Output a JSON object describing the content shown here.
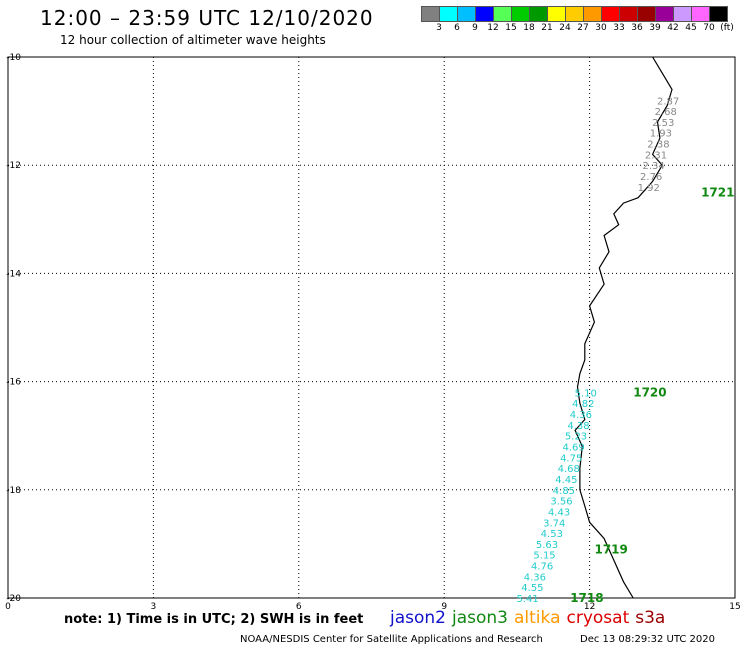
{
  "header": {
    "title": "12:00 – 23:59 UTC 12/10/2020",
    "subtitle": "12 hour collection of altimeter wave heights"
  },
  "colorbar": {
    "colors": [
      "#808080",
      "#00ffff",
      "#00bfff",
      "#0000ff",
      "#55ff55",
      "#00cc00",
      "#009900",
      "#ffff00",
      "#ffcc00",
      "#ff9900",
      "#ff0000",
      "#cc0000",
      "#990000",
      "#990099",
      "#cc99ff",
      "#ff66ff",
      "#000000"
    ],
    "labels": [
      "3",
      "6",
      "9",
      "12",
      "15",
      "18",
      "21",
      "24",
      "27",
      "30",
      "33",
      "36",
      "39",
      "42",
      "45",
      "70",
      "(ft)"
    ]
  },
  "axes": {
    "x_ticks": [
      "0",
      "3",
      "6",
      "9",
      "12",
      "15"
    ],
    "y_ticks": [
      "-10",
      "-12",
      "-14",
      "-16",
      "-18",
      "-20"
    ]
  },
  "map_extent": {
    "lon_min": 0,
    "lon_max": 15,
    "lat_min": -20,
    "lat_max": -10
  },
  "coastline": [
    [
      13.3,
      -10.0
    ],
    [
      13.5,
      -10.3
    ],
    [
      13.7,
      -10.6
    ],
    [
      13.6,
      -10.9
    ],
    [
      13.4,
      -11.2
    ],
    [
      13.45,
      -11.5
    ],
    [
      13.3,
      -11.8
    ],
    [
      13.5,
      -12.0
    ],
    [
      13.3,
      -12.3
    ],
    [
      13.0,
      -12.6
    ],
    [
      12.7,
      -12.7
    ],
    [
      12.5,
      -12.9
    ],
    [
      12.6,
      -13.1
    ],
    [
      12.3,
      -13.3
    ],
    [
      12.4,
      -13.6
    ],
    [
      12.2,
      -13.9
    ],
    [
      12.3,
      -14.2
    ],
    [
      12.0,
      -14.6
    ],
    [
      12.1,
      -14.9
    ],
    [
      11.9,
      -15.3
    ],
    [
      11.9,
      -15.6
    ],
    [
      11.8,
      -15.85
    ],
    [
      11.75,
      -16.1
    ],
    [
      11.8,
      -16.4
    ],
    [
      11.9,
      -16.7
    ],
    [
      11.7,
      -16.9
    ],
    [
      11.85,
      -17.2
    ],
    [
      11.8,
      -17.6
    ],
    [
      11.8,
      -18.0
    ],
    [
      11.9,
      -18.3
    ],
    [
      12.0,
      -18.6
    ],
    [
      12.3,
      -18.9
    ],
    [
      12.5,
      -19.3
    ],
    [
      12.7,
      -19.7
    ],
    [
      12.9,
      -20.0
    ]
  ],
  "passes": [
    {
      "track": "1721",
      "track_lon": 14.3,
      "track_lat": -12.5,
      "color": "#888888",
      "points": [
        {
          "lon": 13.85,
          "lat": -10.8,
          "swh": "2.87"
        },
        {
          "lon": 13.8,
          "lat": -11.0,
          "swh": "2.68"
        },
        {
          "lon": 13.75,
          "lat": -11.2,
          "swh": "2.53"
        },
        {
          "lon": 13.7,
          "lat": -11.4,
          "swh": "1.93"
        },
        {
          "lon": 13.65,
          "lat": -11.6,
          "swh": "2.38"
        },
        {
          "lon": 13.6,
          "lat": -11.8,
          "swh": "2.31"
        },
        {
          "lon": 13.55,
          "lat": -12.0,
          "swh": "2.34"
        },
        {
          "lon": 13.5,
          "lat": -12.2,
          "swh": "2.76"
        },
        {
          "lon": 13.45,
          "lat": -12.4,
          "swh": "1.92"
        }
      ]
    },
    {
      "track": "1720",
      "track_lon": 12.9,
      "track_lat": -16.2,
      "color": "#22cccc",
      "points": [
        {
          "lon": 12.15,
          "lat": -16.2,
          "swh": "5.10"
        },
        {
          "lon": 12.1,
          "lat": -16.4,
          "swh": "4.82"
        },
        {
          "lon": 12.05,
          "lat": -16.6,
          "swh": "4.36"
        },
        {
          "lon": 12.0,
          "lat": -16.8,
          "swh": "4.38"
        },
        {
          "lon": 11.95,
          "lat": -17.0,
          "swh": "5.23"
        },
        {
          "lon": 11.9,
          "lat": -17.2,
          "swh": "4.69"
        },
        {
          "lon": 11.85,
          "lat": -17.4,
          "swh": "4.75"
        },
        {
          "lon": 11.8,
          "lat": -17.6,
          "swh": "4.68"
        },
        {
          "lon": 11.75,
          "lat": -17.8,
          "swh": "4.45"
        },
        {
          "lon": 11.7,
          "lat": -18.0,
          "swh": "4.85"
        }
      ]
    },
    {
      "track": "1719",
      "track_lon": 12.1,
      "track_lat": -19.1,
      "color": "#22cccc",
      "points": [
        {
          "lon": 11.65,
          "lat": -18.2,
          "swh": "3.56"
        },
        {
          "lon": 11.6,
          "lat": -18.4,
          "swh": "4.43"
        },
        {
          "lon": 11.5,
          "lat": -18.6,
          "swh": "3.74"
        },
        {
          "lon": 11.45,
          "lat": -18.8,
          "swh": "4.53"
        },
        {
          "lon": 11.35,
          "lat": -19.0,
          "swh": "5.63"
        },
        {
          "lon": 11.3,
          "lat": -19.2,
          "swh": "5.15"
        },
        {
          "lon": 11.25,
          "lat": -19.4,
          "swh": "4.76"
        }
      ]
    },
    {
      "track": "1718",
      "track_lon": 11.6,
      "track_lat": -20.0,
      "color": "#22cccc",
      "points": [
        {
          "lon": 11.1,
          "lat": -19.6,
          "swh": "4.36"
        },
        {
          "lon": 11.05,
          "lat": -19.8,
          "swh": "4.55"
        },
        {
          "lon": 10.95,
          "lat": -20.0,
          "swh": "5.41"
        }
      ]
    }
  ],
  "footer": {
    "note": "note: 1) Time is in UTC; 2) SWH is in feet",
    "satellites": [
      {
        "name": "jason2",
        "color": "#1111cc"
      },
      {
        "name": "jason3",
        "color": "#118811"
      },
      {
        "name": "altika",
        "color": "#ff9900"
      },
      {
        "name": "cryosat",
        "color": "#dd0000"
      },
      {
        "name": "s3a",
        "color": "#990000"
      }
    ],
    "credit": "NOAA/NESDIS Center for Satellite Applications and Research",
    "timestamp": "Dec 13 08:29:32 UTC 2020"
  }
}
